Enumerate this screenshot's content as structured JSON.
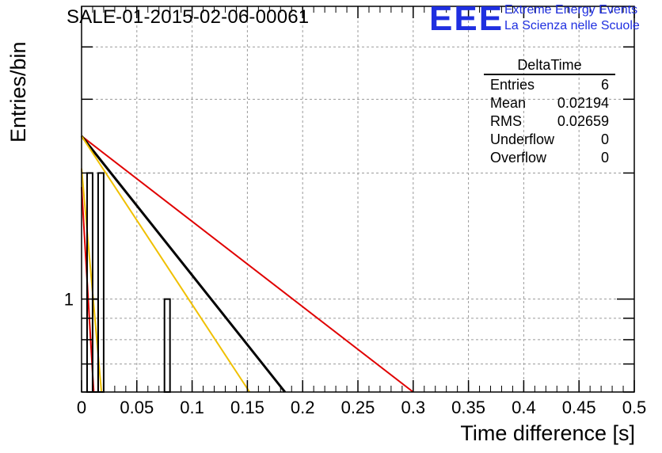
{
  "header": {
    "title": "SALE-01-2015-02-06-00061",
    "logo_text": "EEE",
    "logo_line1": "Extreme Energy Events",
    "logo_line2": "La Scienza nelle Scuole",
    "logo_color": "#1f2fe0"
  },
  "stats_box": {
    "name": "DeltaTime",
    "rows": [
      {
        "label": "Entries",
        "value": "6"
      },
      {
        "label": "Mean",
        "value": "0.02194"
      },
      {
        "label": "RMS",
        "value": "0.02659"
      },
      {
        "label": "Underflow",
        "value": "0"
      },
      {
        "label": "Overflow",
        "value": "0"
      }
    ]
  },
  "chart_data": {
    "type": "bar",
    "title": "SALE-01-2015-02-06-00061",
    "xlabel": "Time difference [s]",
    "ylabel": "Entries/bin",
    "xlim": [
      0,
      0.5
    ],
    "ylim": [
      0.6,
      5
    ],
    "yscale": "log",
    "grid": true,
    "xticks": [
      "0",
      "0.05",
      "0.1",
      "0.15",
      "0.2",
      "0.25",
      "0.3",
      "0.35",
      "0.4",
      "0.45",
      "0.5"
    ],
    "yticks": [
      "1"
    ],
    "histogram": {
      "bin_width": 0.005,
      "bins": [
        {
          "x0": 0.0,
          "value": 0
        },
        {
          "x0": 0.005,
          "value": 2
        },
        {
          "x0": 0.01,
          "value": 1
        },
        {
          "x0": 0.015,
          "value": 2
        },
        {
          "x0": 0.075,
          "value": 1
        }
      ]
    },
    "fits": [
      {
        "color": "#e00000",
        "x0": 0.0,
        "y0": 2.45,
        "x1": 0.3,
        "y1": 0.6
      },
      {
        "color": "#000000",
        "x0": 0.0,
        "y0": 2.45,
        "x1": 0.184,
        "y1": 0.6
      },
      {
        "color": "#f0c000",
        "x0": 0.0,
        "y0": 2.45,
        "x1": 0.152,
        "y1": 0.6
      },
      {
        "color": "#f0c000",
        "x0": 0.0,
        "y0": 2.05,
        "x1": 0.018,
        "y1": 0.6
      },
      {
        "color": "#e00000",
        "x0": 0.0,
        "y0": 1.85,
        "x1": 0.011,
        "y1": 0.6
      }
    ]
  }
}
